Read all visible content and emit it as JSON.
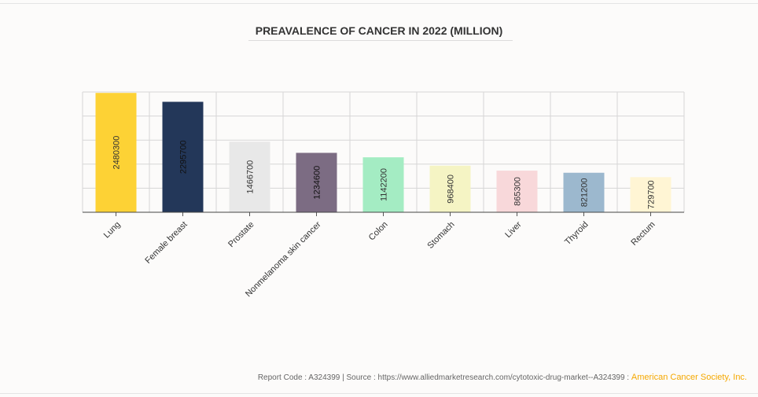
{
  "chart_data": {
    "type": "bar",
    "title": "PREAVALENCE OF CANCER IN 2022 (MILLION)",
    "categories": [
      "Lung",
      "Female breast",
      "Prostate",
      "Nonmelanoma skin cancer",
      "Colon",
      "Stomach",
      "Liver",
      "Thyroid",
      "Rectum"
    ],
    "values": [
      2480300,
      2295700,
      1466700,
      1234600,
      1142200,
      968400,
      865300,
      821200,
      729700
    ],
    "colors": [
      "#fdd235",
      "#233759",
      "#e8e8e8",
      "#7c6c83",
      "#a4ecc3",
      "#f5f4c4",
      "#f8d8da",
      "#9cb8ce",
      "#fff5d4"
    ],
    "ylim": [
      0,
      2500000
    ],
    "grid": true,
    "data_labels": "rotated-inside"
  },
  "footer": {
    "text": "Report Code : A324399  |  Source : https://www.alliedmarketresearch.com/cytotoxic-drug-market--A324399 : ",
    "org": "American Cancer Society, Inc."
  }
}
